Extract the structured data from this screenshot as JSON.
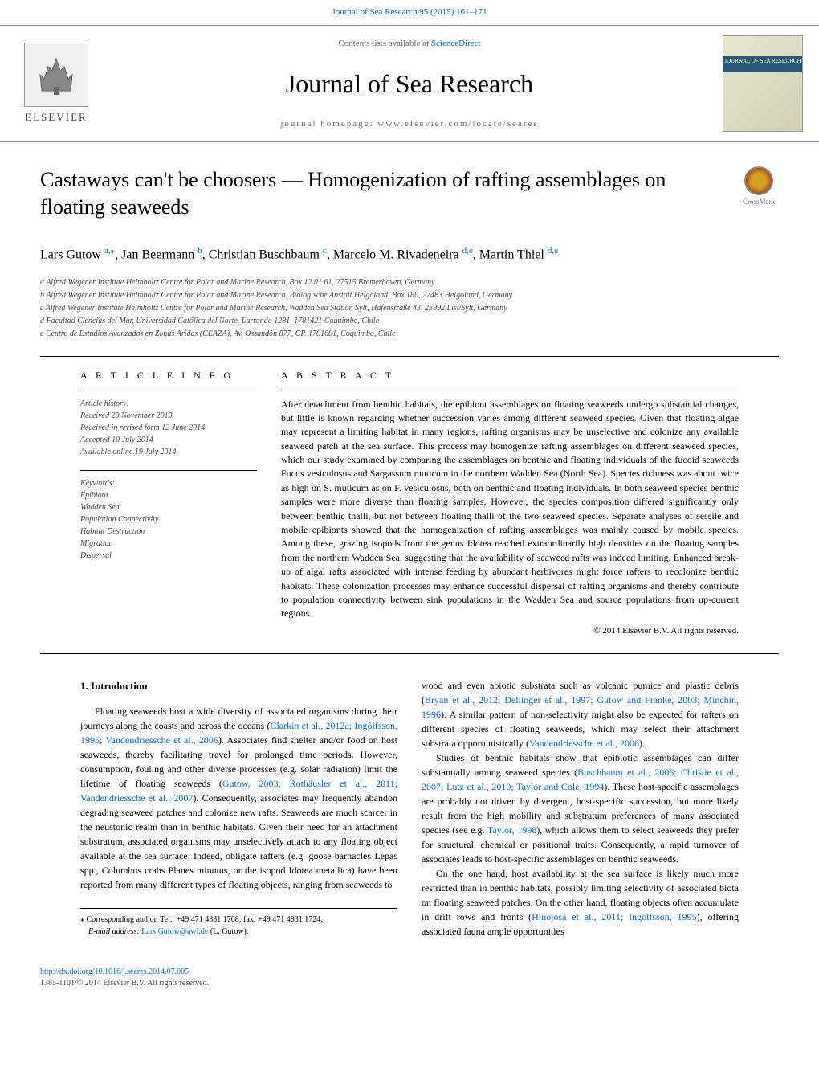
{
  "header": {
    "journal_ref": "Journal of Sea Research 95 (2015) 161–171",
    "contents_text": "Contents lists available at ",
    "sciencedirect": "ScienceDirect",
    "journal_name": "Journal of Sea Research",
    "homepage_text": "journal homepage: www.elsevier.com/locate/seares",
    "elsevier_label": "ELSEVIER",
    "cover_text": "JOURNAL OF SEA RESEARCH"
  },
  "article": {
    "title": "Castaways can't be choosers — Homogenization of rafting assemblages on floating seaweeds",
    "crossmark_label": "CrossMark"
  },
  "authors": {
    "line_prefix": "",
    "list": [
      {
        "name": "Lars Gutow ",
        "aff": "a,⁎"
      },
      {
        "name": ", Jan Beermann ",
        "aff": "b"
      },
      {
        "name": ", Christian Buschbaum ",
        "aff": "c"
      },
      {
        "name": ", Marcelo M. Rivadeneira ",
        "aff": "d,e"
      },
      {
        "name": ", Martin Thiel ",
        "aff": "d,e"
      }
    ]
  },
  "affiliations": [
    "a Alfred Wegener Institute Helmholtz Centre for Polar and Marine Research, Box 12 01 61, 27515 Bremerhaven, Germany",
    "b Alfred Wegener Institute Helmholtz Centre for Polar and Marine Research, Biologische Anstalt Helgoland, Box 180, 27483 Helgoland, Germany",
    "c Alfred Wegener Institute Helmholtz Centre for Polar and Marine Research, Wadden Sea Station Sylt, Hafenstraße 43, 25992 List/Sylt, Germany",
    "d Facultad Ciencias del Mar, Universidad Católica del Norte, Larrondo 1281, 1781421 Coquimbo, Chile",
    "e Centro de Estudios Avanzados en Zonas Áridas (CEAZA), Av. Ossandón 877, CP. 1781681, Coquimbo, Chile"
  ],
  "info": {
    "heading": "A R T I C L E   I N F O",
    "history_label": "Article history:",
    "history": [
      "Received 29 November 2013",
      "Received in revised form 12 June 2014",
      "Accepted 10 July 2014",
      "Available online 19 July 2014"
    ],
    "keywords_label": "Keywords:",
    "keywords": [
      "Epibiota",
      "Wadden Sea",
      "Population Connectivity",
      "Habitat Destruction",
      "Migration",
      "Dispersal"
    ]
  },
  "abstract": {
    "heading": "A B S T R A C T",
    "text": "After detachment from benthic habitats, the epibiont assemblages on floating seaweeds undergo substantial changes, but little is known regarding whether succession varies among different seaweed species. Given that floating algae may represent a limiting habitat in many regions, rafting organisms may be unselective and colonize any available seaweed patch at the sea surface. This process may homogenize rafting assemblages on different seaweed species, which our study examined by comparing the assemblages on benthic and floating individuals of the fucoid seaweeds Fucus vesiculosus and Sargassum muticum in the northern Wadden Sea (North Sea). Species richness was about twice as high on S. muticum as on F. vesiculosus, both on benthic and floating individuals. In both seaweed species benthic samples were more diverse than floating samples. However, the species composition differed significantly only between benthic thalli, but not between floating thalli of the two seaweed species. Separate analyses of sessile and mobile epibionts showed that the homogenization of rafting assemblages was mainly caused by mobile species. Among these, grazing isopods from the genus Idotea reached extraordinarily high densities on the floating samples from the northern Wadden Sea, suggesting that the availability of seaweed rafts was indeed limiting. Enhanced break-up of algal rafts associated with intense feeding by abundant herbivores might force rafters to recolonize benthic habitats. These colonization processes may enhance successful dispersal of rafting organisms and thereby contribute to population connectivity between sink populations in the Wadden Sea and source populations from up-current regions.",
    "copyright": "© 2014 Elsevier B.V. All rights reserved."
  },
  "body": {
    "intro_heading": "1. Introduction",
    "col1_p1a": "Floating seaweeds host a wide diversity of associated organisms during their journeys along the coasts and across the oceans (",
    "col1_p1_cite1": "Clarkin et al., 2012a; Ingólfsson, 1995; Vandendriessche et al., 2006",
    "col1_p1b": "). Associates find shelter and/or food on host seaweeds, thereby facilitating travel for prolonged time periods. However, consumption, fouling and other diverse processes (e.g. solar radiation) limit the lifetime of floating seaweeds (",
    "col1_p1_cite2": "Gutow, 2003; Rothäusler et al., 2011; Vandendriessche et al., 2007",
    "col1_p1c": "). Consequently, associates may frequently abandon degrading seaweed patches and colonize new rafts. Seaweeds are much scarcer in the neustonic realm than in benthic habitats. Given their need for an attachment substratum, associated organisms may unselectively attach to any floating object available at the sea surface. Indeed, obligate rafters (e.g. goose barnacles Lepas spp., Columbus crabs Planes minutus, or the isopod Idotea metallica) have been reported from many different types of floating objects, ranging from seaweeds to",
    "col2_p1a": "wood and even abiotic substrata such as volcanic pumice and plastic debris (",
    "col2_p1_cite1": "Bryan et al., 2012; Dellinger et al., 1997; Gutow and Franke, 2003; Minchin, 1996",
    "col2_p1b": "). A similar pattern of non-selectivity might also be expected for rafters on different species of floating seaweeds, which may select their attachment substrata opportunistically (",
    "col2_p1_cite2": "Vandendriessche et al., 2006",
    "col2_p1c": ").",
    "col2_p2a": "Studies of benthic habitats show that epibiotic assemblages can differ substantially among seaweed species (",
    "col2_p2_cite1": "Buschbaum et al., 2006; Christie et al., 2007; Lutz et al., 2010; Taylor and Cole, 1994",
    "col2_p2b": "). These host-specific assemblages are probably not driven by divergent, host-specific succession, but more likely result from the high mobility and substratum preferences of many associated species (see e.g. ",
    "col2_p2_cite2": "Taylor, 1998",
    "col2_p2c": "), which allows them to select seaweeds they prefer for structural, chemical or positional traits. Consequently, a rapid turnover of associates leads to host-specific assemblages on benthic seaweeds.",
    "col2_p3a": "On the one hand, host availability at the sea surface is likely much more restricted than in benthic habitats, possibly limiting selectivity of associated biota on floating seaweed patches. On the other hand, floating objects often accumulate in drift rows and fronts (",
    "col2_p3_cite1": "Hinojosa et al., 2011; Ingólfsson, 1995",
    "col2_p3b": "), offering associated fauna ample opportunities"
  },
  "corresponding": {
    "marker": "⁎",
    "text": " Corresponding author. Tel.: +49 471 4831 1708; fax: +49 471 4831 1724.",
    "email_label": "E-mail address: ",
    "email": "Lars.Gutow@awi.de",
    "email_suffix": " (L. Gutow)."
  },
  "footer": {
    "doi": "http://dx.doi.org/10.1016/j.seares.2014.07.005",
    "issn_copyright": "1385-1101/© 2014 Elsevier B.V. All rights reserved."
  },
  "colors": {
    "link": "#0066cc",
    "text": "#000000",
    "muted": "#444444"
  }
}
